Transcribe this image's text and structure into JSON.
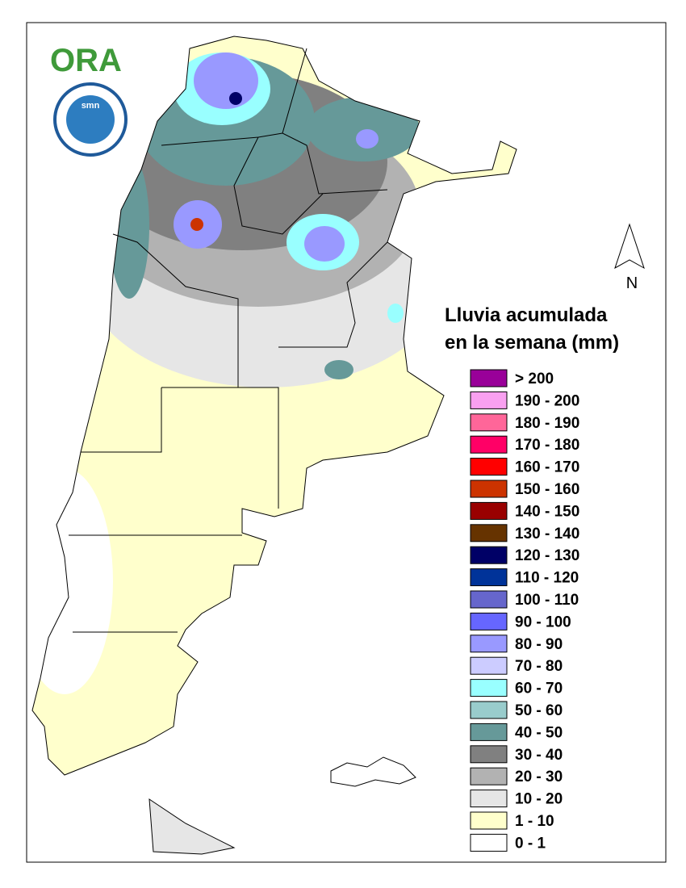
{
  "logos": {
    "ora": "ORA",
    "smn": "smn"
  },
  "north": "N",
  "title": [
    "Lluvia acumulada",
    "en la semana (mm)"
  ],
  "legend": [
    {
      "label": "> 200",
      "color": "#990099"
    },
    {
      "label": "190 - 200",
      "color": "#f9a0f0"
    },
    {
      "label": "180 - 190",
      "color": "#ff6699"
    },
    {
      "label": "170 - 180",
      "color": "#ff0066"
    },
    {
      "label": "160 - 170",
      "color": "#ff0000"
    },
    {
      "label": "150 - 160",
      "color": "#cc3300"
    },
    {
      "label": "140 - 150",
      "color": "#990000"
    },
    {
      "label": "130 - 140",
      "color": "#663300"
    },
    {
      "label": "120 - 130",
      "color": "#000066"
    },
    {
      "label": "110 - 120",
      "color": "#003399"
    },
    {
      "label": "100 - 110",
      "color": "#6666cc"
    },
    {
      "label": "90 - 100",
      "color": "#6666ff"
    },
    {
      "label": "80 - 90",
      "color": "#9999ff"
    },
    {
      "label": "70 - 80",
      "color": "#ccccff"
    },
    {
      "label": "60 - 70",
      "color": "#99ffff"
    },
    {
      "label": "50 - 60",
      "color": "#99cccc"
    },
    {
      "label": "40 - 50",
      "color": "#669999"
    },
    {
      "label": "30 - 40",
      "color": "#808080"
    },
    {
      "label": "20 - 30",
      "color": "#b2b2b2"
    },
    {
      "label": "10 - 20",
      "color": "#e6e6e6"
    },
    {
      "label": "1 - 10",
      "color": "#ffffcc"
    },
    {
      "label": "0 - 1",
      "color": "#ffffff"
    }
  ]
}
